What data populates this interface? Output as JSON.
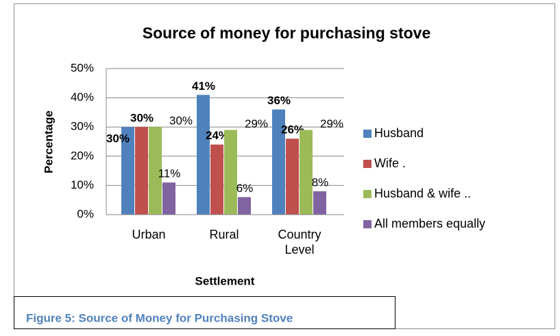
{
  "chart_data": {
    "type": "bar",
    "title": "Source of money for purchasing stove",
    "x_label": "Settlement",
    "y_label": "Percentage",
    "categories": [
      "Urban",
      "Rural",
      "Country Level"
    ],
    "series": [
      {
        "name": "Husband",
        "color": "#4f81bd",
        "values": [
          30,
          41,
          36
        ],
        "value_labels": [
          "30%",
          "41%",
          "36%"
        ]
      },
      {
        "name": "Wife .",
        "color": "#c0504d",
        "values": [
          30,
          24,
          26
        ],
        "value_labels": [
          "30%",
          "24%",
          "26%"
        ]
      },
      {
        "name": "Husband & wife ..",
        "color": "#9bbb59",
        "values": [
          30,
          29,
          29
        ],
        "value_labels": [
          "30%",
          "29%",
          "29%"
        ]
      },
      {
        "name": "All members equally",
        "color": "#8064a2",
        "values": [
          11,
          6,
          8
        ],
        "value_labels": [
          "11%",
          "6%",
          "8%"
        ]
      }
    ],
    "ylim": [
      0,
      50
    ],
    "yticks": [
      {
        "value": 0,
        "label": "0%"
      },
      {
        "value": 10,
        "label": "10%"
      },
      {
        "value": 20,
        "label": "20%"
      },
      {
        "value": 30,
        "label": "30%"
      },
      {
        "value": 40,
        "label": "40%"
      },
      {
        "value": 50,
        "label": "50%"
      }
    ],
    "grid": true,
    "legend": "right"
  },
  "caption": "Figure 5: Source of Money for Purchasing Stove"
}
